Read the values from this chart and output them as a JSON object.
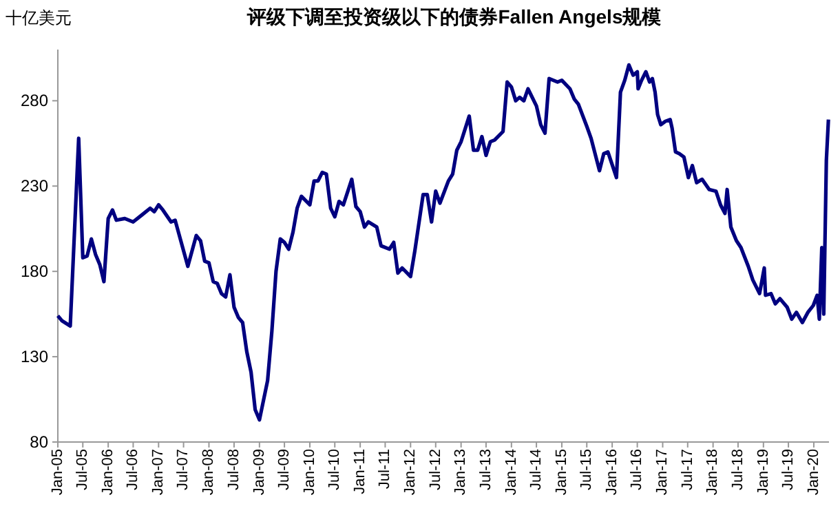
{
  "chart_data": {
    "type": "line",
    "title": "评级下调至投资级以下的债券Fallen Angels规模",
    "ylabel": "十亿美元",
    "x": [
      "2005-01",
      "2005-02",
      "2005-04",
      "2005-06",
      "2005-07",
      "2005-08",
      "2005-09",
      "2005-10",
      "2005-11",
      "2005-12",
      "2006-01",
      "2006-02",
      "2006-03",
      "2006-05",
      "2006-07",
      "2006-09",
      "2006-11",
      "2006-12",
      "2007-01",
      "2007-02",
      "2007-04",
      "2007-05",
      "2007-08",
      "2007-10",
      "2007-11",
      "2007-12",
      "2008-01",
      "2008-02",
      "2008-03",
      "2008-04",
      "2008-05",
      "2008-06",
      "2008-07",
      "2008-08",
      "2008-09",
      "2008-10",
      "2008-11",
      "2008-12",
      "2009-01",
      "2009-03",
      "2009-04",
      "2009-05",
      "2009-06",
      "2009-07",
      "2009-08",
      "2009-09",
      "2009-10",
      "2009-11",
      "2010-01",
      "2010-02",
      "2010-03",
      "2010-04",
      "2010-05",
      "2010-06",
      "2010-07",
      "2010-08",
      "2010-09",
      "2010-11",
      "2010-12",
      "2011-01",
      "2011-02",
      "2011-03",
      "2011-05",
      "2011-06",
      "2011-08",
      "2011-09",
      "2011-10",
      "2011-11",
      "2012-01",
      "2012-02",
      "2012-04",
      "2012-05",
      "2012-06",
      "2012-07",
      "2012-08",
      "2012-10",
      "2012-11",
      "2012-12",
      "2013-01",
      "2013-03",
      "2013-04",
      "2013-05",
      "2013-06",
      "2013-07",
      "2013-08",
      "2013-09",
      "2013-11",
      "2013-12",
      "2014-01",
      "2014-02",
      "2014-03",
      "2014-04",
      "2014-05",
      "2014-07",
      "2014-08",
      "2014-09",
      "2014-10",
      "2014-12",
      "2015-01",
      "2015-03",
      "2015-04",
      "2015-05",
      "2015-07",
      "2015-08",
      "2015-10",
      "2015-11",
      "2015-12",
      "2016-02",
      "2016-03",
      "2016-04",
      "2016-05",
      "2016-06",
      "2016-07-01",
      "2016-07-07",
      "2016-08-01",
      "2016-09-01",
      "2016-09-28",
      "2016-10-18",
      "2016-11-07",
      "2016-11-25",
      "2016-12-18",
      "2017-01-21",
      "2017-02-24",
      "2017-03-10",
      "2017-04-04",
      "2017-05-01",
      "2017-06-04",
      "2017-07-06",
      "2017-08-04",
      "2017-09-04",
      "2017-10-13",
      "2017-12-04",
      "2018-01-22",
      "2018-02-24",
      "2018-03-28",
      "2018-04-13",
      "2018-05-10",
      "2018-06-19",
      "2018-07-22",
      "2018-09-13",
      "2018-10-16",
      "2018-12-04",
      "2019-01-07",
      "2019-01-16",
      "2019-02-25",
      "2019-03-28",
      "2019-05-01",
      "2019-06-22",
      "2019-07-25",
      "2019-08-28",
      "2019-10-10",
      "2019-11-19",
      "2019-12-28",
      "2020-01-25",
      "2020-02-10",
      "2020-02-28",
      "2020-03-13",
      "2020-04-01",
      "2020-04-16"
    ],
    "series": [
      {
        "color": "#000080",
        "values": [
          154,
          151,
          148,
          258,
          188,
          189,
          199,
          190,
          184,
          174,
          211,
          216,
          210,
          211,
          209,
          213,
          217,
          215,
          219,
          216,
          209,
          210,
          183,
          201,
          198,
          186,
          185,
          174,
          173,
          167,
          165,
          178,
          159,
          153,
          150,
          133,
          121,
          99,
          93,
          116,
          145,
          180,
          199,
          197,
          193,
          203,
          217,
          224,
          219,
          233,
          233,
          238,
          237,
          217,
          212,
          221,
          219,
          234,
          218,
          215,
          206,
          209,
          206,
          195,
          193,
          197,
          179,
          182,
          177,
          192,
          225,
          225,
          209,
          227,
          220,
          233,
          237,
          251,
          256,
          271,
          251,
          251,
          259,
          248,
          256,
          257,
          262,
          291,
          288,
          280,
          282,
          280,
          287,
          277,
          266,
          261,
          293,
          291,
          292,
          287,
          281,
          278,
          265,
          258,
          239,
          249,
          250,
          235,
          285,
          292,
          301,
          295,
          297,
          287,
          292,
          297,
          291,
          293,
          285,
          272,
          266,
          268,
          269,
          264,
          250,
          249,
          247,
          235,
          242,
          232,
          234,
          228,
          227,
          219,
          214,
          228,
          206,
          198,
          194,
          183,
          175,
          167,
          182,
          166,
          167,
          161,
          164,
          159,
          152,
          156,
          150,
          156,
          160,
          166,
          152,
          194,
          155,
          245,
          269
        ]
      }
    ],
    "xlim": [
      "2005-01",
      "2020-04-20"
    ],
    "xticks": [
      {
        "value": "2005-01",
        "label": "Jan-05"
      },
      {
        "value": "2005-07",
        "label": "Jul-05"
      },
      {
        "value": "2006-01",
        "label": "Jan-06"
      },
      {
        "value": "2006-07",
        "label": "Jul-06"
      },
      {
        "value": "2007-01",
        "label": "Jan-07"
      },
      {
        "value": "2007-07",
        "label": "Jul-07"
      },
      {
        "value": "2008-01",
        "label": "Jan-08"
      },
      {
        "value": "2008-07",
        "label": "Jul-08"
      },
      {
        "value": "2009-01",
        "label": "Jan-09"
      },
      {
        "value": "2009-07",
        "label": "Jul-09"
      },
      {
        "value": "2010-01",
        "label": "Jan-10"
      },
      {
        "value": "2010-07",
        "label": "Jul-10"
      },
      {
        "value": "2011-01",
        "label": "Jan-11"
      },
      {
        "value": "2011-07",
        "label": "Jul-11"
      },
      {
        "value": "2012-01",
        "label": "Jan-12"
      },
      {
        "value": "2012-07",
        "label": "Jul-12"
      },
      {
        "value": "2013-01",
        "label": "Jan-13"
      },
      {
        "value": "2013-07",
        "label": "Jul-13"
      },
      {
        "value": "2014-01",
        "label": "Jan-14"
      },
      {
        "value": "2014-07",
        "label": "Jul-14"
      },
      {
        "value": "2015-01",
        "label": "Jan-15"
      },
      {
        "value": "2015-07",
        "label": "Jul-15"
      },
      {
        "value": "2016-01",
        "label": "Jan-16"
      },
      {
        "value": "2016-07",
        "label": "Jul-16"
      },
      {
        "value": "2017-01",
        "label": "Jan-17"
      },
      {
        "value": "2017-07",
        "label": "Jul-17"
      },
      {
        "value": "2018-01",
        "label": "Jan-18"
      },
      {
        "value": "2018-07",
        "label": "Jul-18"
      },
      {
        "value": "2019-01",
        "label": "Jan-19"
      },
      {
        "value": "2019-07",
        "label": "Jul-19"
      },
      {
        "value": "2020-01",
        "label": "Jan-20"
      }
    ],
    "ylim": [
      80,
      310
    ],
    "yticks": [
      80,
      130,
      180,
      230,
      280
    ],
    "line_style": "solid"
  }
}
